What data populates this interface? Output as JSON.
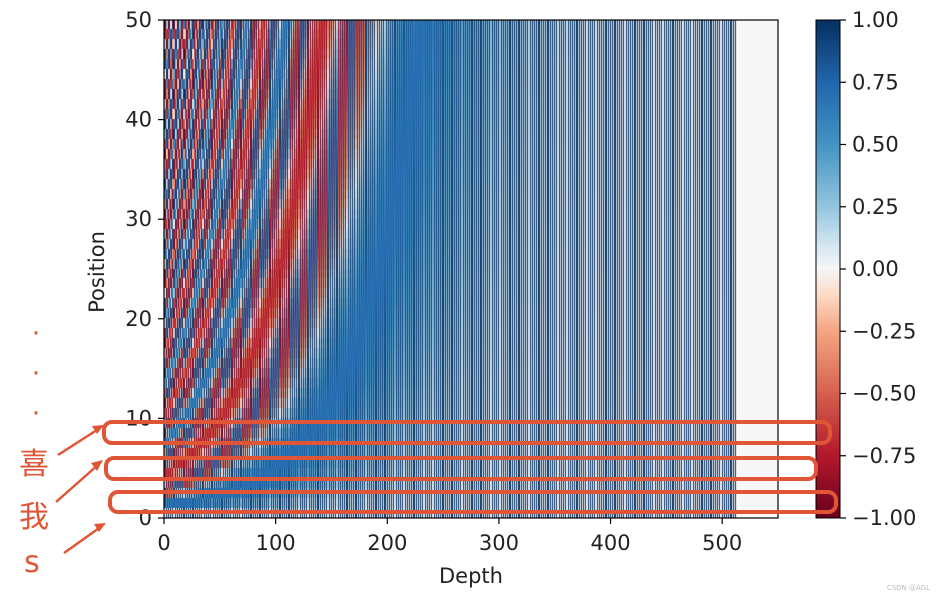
{
  "chart_data": {
    "type": "heatmap",
    "title": "",
    "xlabel": "Depth",
    "ylabel": "Position",
    "xlim": [
      0,
      550
    ],
    "ylim": [
      0,
      50
    ],
    "x_ticks": [
      "0",
      "100",
      "200",
      "300",
      "400",
      "500"
    ],
    "y_ticks": [
      "0",
      "10",
      "20",
      "30",
      "40",
      "50"
    ],
    "colorbar": {
      "range": [
        -1.0,
        1.0
      ],
      "ticks": [
        "1.00",
        "0.75",
        "0.50",
        "0.25",
        "0.00",
        "−0.25",
        "−0.50",
        "−0.75",
        "−1.00"
      ],
      "colormap": "RdBu",
      "color_low": "#67001f",
      "color_high": "#053061"
    },
    "description": "Sinusoidal positional encoding matrix: 50 positions x 512 depth dimensions"
  },
  "annotations": {
    "color": "#e05535",
    "dots": [
      "·",
      "·",
      "·"
    ],
    "labels": [
      "喜",
      "我",
      "s"
    ]
  },
  "watermark": "CSDN @AGL"
}
